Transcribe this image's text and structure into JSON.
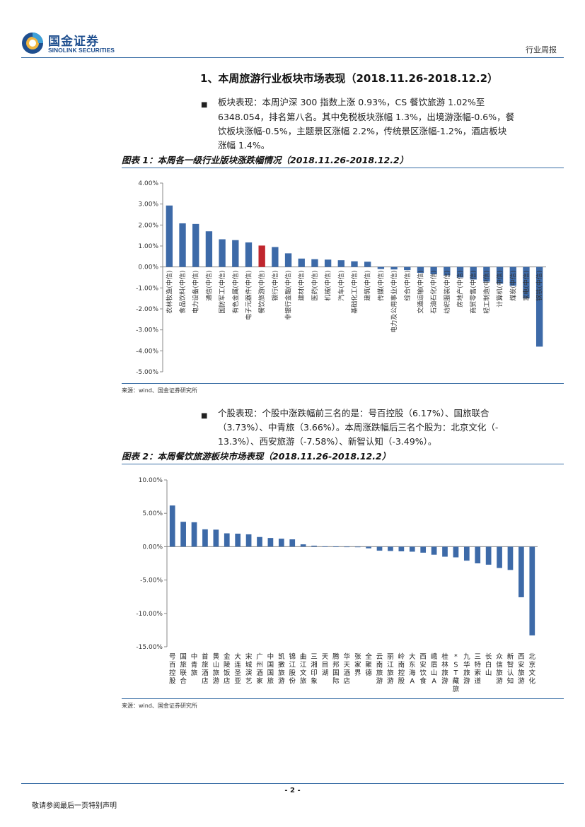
{
  "header": {
    "logo_cn": "国金证券",
    "logo_en": "SINOLINK SECURITIES",
    "report_type": "行业周报"
  },
  "section": {
    "title": "1、本周旅游行业板块市场表现（2018.11.26-2018.12.2）"
  },
  "para1": {
    "lines": [
      "板块表现：本周沪深 300 指数上涨 0.93%，CS 餐饮旅游 1.02%至",
      "6348.054，排名第八名。其中免税板块涨幅 1.3%，出境游涨幅-0.6%，餐",
      "饮板块涨幅-0.5%，主题景区涨幅 2.2%，传统景区涨幅-1.2%，酒店板块",
      "涨幅 1.4%。"
    ]
  },
  "para2": {
    "lines": [
      "个股表现：个股中涨跌幅前三名的是：号百控股（6.17%）、国旅联合",
      "（3.73%）、中青旅（3.66%）。本周涨跌幅后三名个股为：北京文化（-",
      "13.3%）、西安旅游（-7.58%）、新智认知（-3.49%）。"
    ]
  },
  "figure1": {
    "title": "图表 1：本周各一级行业版块涨跌幅情况（2018.11.26-2018.12.2）",
    "source": "来源：wind、国金证券研究所"
  },
  "figure2": {
    "title": "图表 2：本周餐饮旅游板块市场表现（2018.11.26-2018.12.2）",
    "source": "来源：wind、国金证券研究所"
  },
  "chart_data": [
    {
      "type": "bar",
      "ylim": [
        -5,
        4
      ],
      "yticks": [
        "4.00%",
        "3.00%",
        "2.00%",
        "1.00%",
        "0.00%",
        "-1.00%",
        "-2.00%",
        "-3.00%",
        "-4.00%",
        "-5.00%"
      ],
      "bar_color": "#3d6aa8",
      "highlight_color": "#c0262d",
      "highlight_index": 7,
      "categories": [
        "农林牧渔(中信)",
        "食品饮料(中信)",
        "电力设备(中信)",
        "通信(中信)",
        "国防军工(中信)",
        "有色金属(中信)",
        "电子元器件(中信)",
        "餐饮旅游(中信)",
        "银行(中信)",
        "非银行金融(中信)",
        "建材(中信)",
        "医药(中信)",
        "机械(中信)",
        "汽车(中信)",
        "基础化工(中信)",
        "建筑(中信)",
        "传媒(中信)",
        "电力及公用事业(中信)",
        "综合(中信)",
        "交通运输(中信)",
        "石油石化(中信)",
        "纺织服装(中信)",
        "房地产(中信)",
        "商贸零售(中信)",
        "轻工制造(中信)",
        "计算机(中信)",
        "煤炭(中信)",
        "家电(中信)",
        "钢铁(中信)"
      ],
      "values": [
        2.93,
        2.08,
        2.05,
        1.7,
        1.32,
        1.28,
        1.17,
        1.02,
        0.95,
        0.65,
        0.4,
        0.37,
        0.35,
        0.32,
        0.27,
        0.25,
        -0.1,
        -0.12,
        -0.15,
        -0.28,
        -0.35,
        -0.4,
        -0.5,
        -0.6,
        -0.7,
        -0.8,
        -0.9,
        -1.5,
        -3.8
      ]
    },
    {
      "type": "bar",
      "ylim": [
        -15,
        10
      ],
      "yticks": [
        "10.00%",
        "5.00%",
        "0.00%",
        "-5.00%",
        "-10.00%",
        "-15.00%"
      ],
      "bar_color": "#3d6aa8",
      "categories": [
        "号百控股",
        "国旅联合",
        "中青旅",
        "首旅酒店",
        "黄山旅游",
        "金陵饭店",
        "大连圣亚",
        "宋城演艺",
        "广州酒家",
        "中国国旅",
        "凯撒旅游",
        "锦江股份",
        "曲江文旅",
        "三湘印象",
        "天目湖",
        "腾邦国际",
        "华天酒店",
        "张家界",
        "全聚德",
        "云南旅游",
        "丽江旅游",
        "岭南控股",
        "大东海A",
        "西安饮食",
        "峨眉山A",
        "桂林旅游",
        "*ST藏旅",
        "九华旅游",
        "三特索道",
        "长白山",
        "众信旅游",
        "新智认知",
        "西安旅游",
        "北京文化"
      ],
      "values": [
        6.17,
        3.73,
        3.66,
        2.6,
        2.55,
        2.0,
        1.95,
        1.85,
        1.45,
        1.3,
        1.2,
        1.1,
        0.35,
        0.15,
        0.05,
        0.02,
        0.01,
        -0.05,
        -0.25,
        -0.6,
        -0.65,
        -0.7,
        -0.75,
        -0.9,
        -1.2,
        -1.5,
        -1.6,
        -2.1,
        -2.5,
        -2.7,
        -3.2,
        -3.49,
        -7.58,
        -13.3
      ]
    }
  ],
  "footer": {
    "page": "- 2 -",
    "note": "敬请参阅最后一页特别声明"
  }
}
